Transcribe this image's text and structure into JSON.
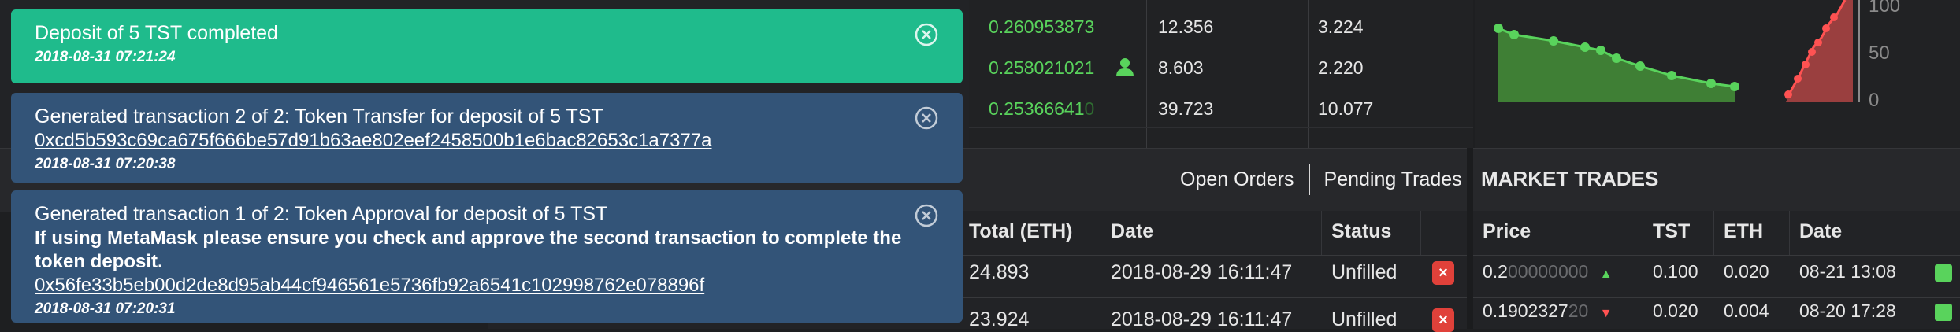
{
  "notifications": [
    {
      "type": "success",
      "title": "Deposit of 5 TST completed",
      "timestamp": "2018-08-31 07:21:24"
    },
    {
      "type": "info",
      "title": "Generated transaction 2 of 2: Token Transfer for deposit of 5 TST",
      "tx_hash": "0xcd5b593c69ca675f666be57d91b63ae802eef2458500b1e6bac82653c1a7377a",
      "timestamp": "2018-08-31 07:20:38"
    },
    {
      "type": "info",
      "title": "Generated transaction 1 of 2: Token Approval for deposit of 5 TST",
      "message": "If using MetaMask please ensure you check and approve the second transaction to complete the token deposit.",
      "tx_hash": "0x56fe33b5eb00d2de8d95ab44cf946561e5736fb92a6541c102998762e078896f",
      "timestamp": "2018-08-31 07:20:31"
    }
  ],
  "order_book": {
    "rows": [
      {
        "price": "0.260953873",
        "price_dim": "",
        "amount": "12.356",
        "total": "3.224",
        "mine": false
      },
      {
        "price": "0.258021021",
        "price_dim": "",
        "amount": "8.603",
        "total": "2.220",
        "mine": true
      },
      {
        "price": "0.25366641",
        "price_dim": "0",
        "amount": "39.723",
        "total": "10.077",
        "mine": false
      }
    ]
  },
  "depth_chart": {
    "y_ticks": [
      "100",
      "50",
      "0"
    ],
    "colors": {
      "bid": "#4c9a3d",
      "ask": "#b94a4a",
      "bid_line": "#59d35c",
      "ask_line": "#ff5252"
    }
  },
  "mid_bar": {
    "tabs": [
      "Open Orders",
      "Pending Trades"
    ],
    "market_trades_title": "MARKET TRADES"
  },
  "open_orders": {
    "columns": [
      "Total (ETH)",
      "Date",
      "Status"
    ],
    "rows": [
      {
        "total": "24.893",
        "date": "2018-08-29 16:11:47",
        "status": "Unfilled"
      },
      {
        "total": "23.924",
        "date": "2018-08-29 16:11:47",
        "status": "Unfilled"
      }
    ],
    "cancel_symbol": "×"
  },
  "market_trades": {
    "columns": [
      "Price",
      "TST",
      "ETH",
      "Date"
    ],
    "rows": [
      {
        "price": "0.2",
        "price_dim": "00000000",
        "direction": "up",
        "tst": "0.100",
        "eth": "0.020",
        "date": "08-21 13:08"
      },
      {
        "price": "0.1902327",
        "price_dim": "20",
        "direction": "down",
        "tst": "0.020",
        "eth": "0.004",
        "date": "08-20 17:28"
      }
    ]
  }
}
